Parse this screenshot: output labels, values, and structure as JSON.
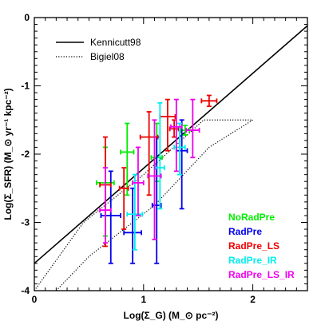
{
  "chart_data": {
    "type": "scatter",
    "xlabel": "Log(Σ_G) (M_⊙ pc⁻²)",
    "ylabel": "Log(Σ_SFR) (M_⊙ yr⁻¹ kpc⁻²)",
    "xlim": [
      0,
      2.5
    ],
    "ylim": [
      -4,
      0
    ],
    "x_ticks": [
      "0",
      "1",
      "2"
    ],
    "y_ticks": [
      "0",
      "-1",
      "-2",
      "-3",
      "-4"
    ],
    "grid": false,
    "lines": [
      {
        "name": "Kennicutt98",
        "style": "solid",
        "color": "#000000",
        "points": [
          [
            0,
            -3.6
          ],
          [
            2.5,
            -0.12
          ]
        ]
      },
      {
        "name": "Bigiel08",
        "style": "dotted",
        "color": "#000000",
        "points": [
          [
            0.0,
            -4.0
          ],
          [
            0.45,
            -3.0
          ],
          [
            1.0,
            -2.3
          ],
          [
            1.55,
            -1.5
          ],
          [
            2.0,
            -1.5
          ],
          [
            1.6,
            -1.9
          ],
          [
            1.1,
            -2.75
          ],
          [
            0.5,
            -3.5
          ],
          [
            0.2,
            -4.0
          ]
        ]
      }
    ],
    "legend_lines_position": "top-left",
    "legend_text_position": "bottom-right",
    "series": [
      {
        "name": "NoRadPre",
        "color": "#00ee00",
        "points": [
          {
            "x": 0.65,
            "y": -2.42,
            "xerr": 0.08,
            "ylo": -3.2,
            "yhi": -1.9
          },
          {
            "x": 0.85,
            "y": -1.97,
            "xerr": 0.06,
            "ylo": -2.6,
            "yhi": -1.55
          },
          {
            "x": 1.12,
            "y": -2.05,
            "xerr": 0.05,
            "ylo": -2.4,
            "yhi": -1.55
          },
          {
            "x": 1.38,
            "y": -1.65,
            "xerr": 0.04,
            "ylo": -1.72,
            "yhi": -1.58
          }
        ]
      },
      {
        "name": "RadPre",
        "color": "#0000ee",
        "points": [
          {
            "x": 0.7,
            "y": -2.9,
            "xerr": 0.09,
            "ylo": -3.6,
            "yhi": -2.25
          },
          {
            "x": 0.9,
            "y": -3.15,
            "xerr": 0.08,
            "ylo": -3.6,
            "yhi": -2.5
          },
          {
            "x": 1.12,
            "y": -2.75,
            "xerr": 0.04,
            "ylo": -3.6,
            "yhi": -1.75
          },
          {
            "x": 1.35,
            "y": -1.95,
            "xerr": 0.05,
            "ylo": -2.8,
            "yhi": -1.5
          }
        ]
      },
      {
        "name": "RadPre_LS",
        "color": "#ee0000",
        "points": [
          {
            "x": 0.65,
            "y": -2.45,
            "xerr": 0.05,
            "ylo": -3.35,
            "yhi": -1.75
          },
          {
            "x": 0.82,
            "y": -2.5,
            "xerr": 0.04,
            "ylo": -3.1,
            "yhi": -2.2
          },
          {
            "x": 1.05,
            "y": -1.75,
            "xerr": 0.08,
            "ylo": -2.6,
            "yhi": -1.38
          },
          {
            "x": 1.22,
            "y": -1.45,
            "xerr": 0.07,
            "ylo": -1.95,
            "yhi": -1.2
          },
          {
            "x": 1.28,
            "y": -1.63,
            "xerr": 0.04,
            "ylo": -1.75,
            "yhi": -1.5
          },
          {
            "x": 1.6,
            "y": -1.22,
            "xerr": 0.07,
            "ylo": -1.3,
            "yhi": -1.14
          }
        ]
      },
      {
        "name": "RadPre_IR",
        "color": "#00eeee",
        "points": [
          {
            "x": 0.92,
            "y": -2.88,
            "xerr": 0.07,
            "ylo": -3.4,
            "yhi": -2.3
          },
          {
            "x": 1.15,
            "y": -2.2,
            "xerr": 0.04,
            "ylo": -2.8,
            "yhi": -1.25
          },
          {
            "x": 1.33,
            "y": -1.9,
            "xerr": 0.05,
            "ylo": -2.3,
            "yhi": -1.55
          }
        ]
      },
      {
        "name": "RadPre_LS_IR",
        "color": "#ee00ee",
        "points": [
          {
            "x": 0.65,
            "y": -2.82,
            "xerr": 0.05,
            "ylo": -3.3,
            "yhi": -2.2
          },
          {
            "x": 0.95,
            "y": -2.42,
            "xerr": 0.05,
            "ylo": -2.9,
            "yhi": -1.9
          },
          {
            "x": 1.1,
            "y": -2.32,
            "xerr": 0.06,
            "ylo": -3.25,
            "yhi": -1.5
          },
          {
            "x": 1.3,
            "y": -1.6,
            "xerr": 0.05,
            "ylo": -2.25,
            "yhi": -1.2
          },
          {
            "x": 1.45,
            "y": -1.65,
            "xerr": 0.06,
            "ylo": -2.05,
            "yhi": -1.2
          }
        ]
      }
    ]
  }
}
